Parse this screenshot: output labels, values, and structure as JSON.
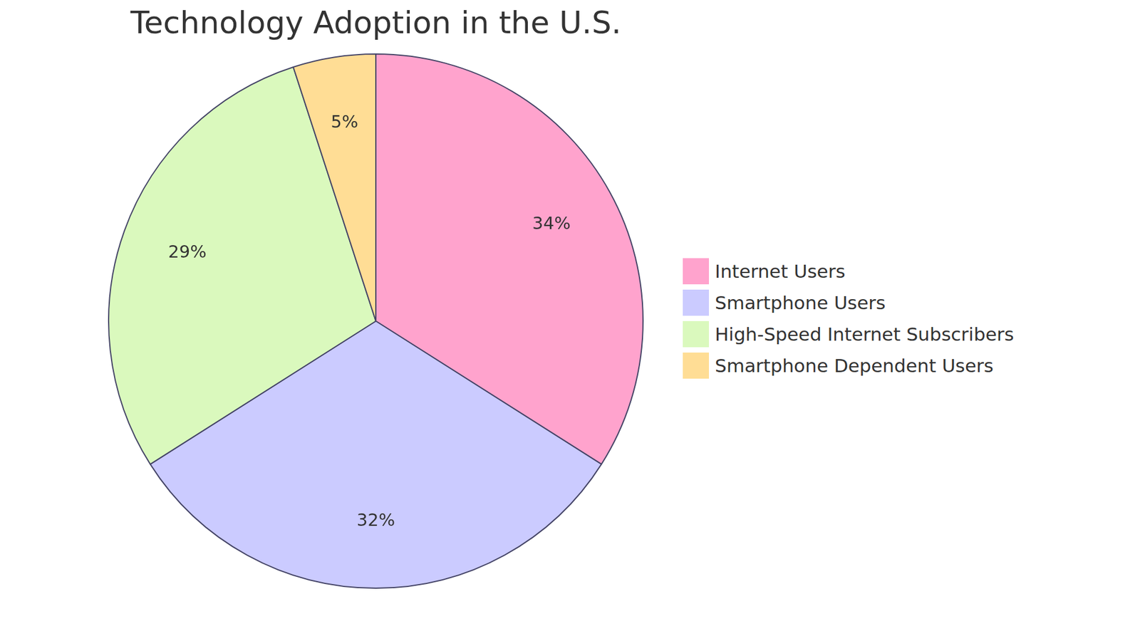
{
  "chart_data": {
    "type": "pie",
    "title": "Technology Adoption in the U.S.",
    "categories": [
      "Internet Users",
      "Smartphone Users",
      "High-Speed Internet Subscribers",
      "Smartphone Dependent Users"
    ],
    "values": [
      34,
      32,
      29,
      5
    ],
    "value_labels": [
      "34%",
      "32%",
      "29%",
      "5%"
    ],
    "colors": [
      "#ffa3cd",
      "#cbcbff",
      "#daf9bd",
      "#ffdd95"
    ],
    "data_labels": true,
    "legend": "right"
  }
}
